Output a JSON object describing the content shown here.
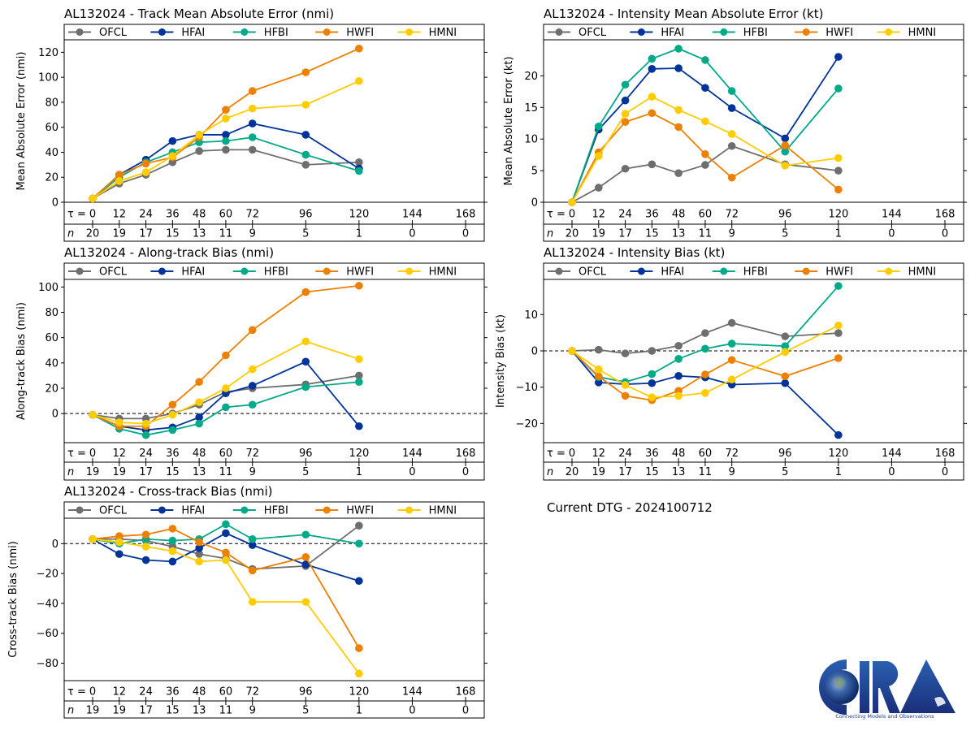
{
  "taus": [
    0,
    12,
    24,
    36,
    48,
    60,
    72,
    96,
    120,
    144,
    168
  ],
  "legend": [
    "OFCL",
    "HFAI",
    "HFBI",
    "HWFI",
    "HMNI"
  ],
  "colors": {
    "OFCL": "#6e6e6e",
    "HFAI": "#003399",
    "HFBI": "#00aa88",
    "HWFI": "#ee8000",
    "HMNI": "#ffcc00"
  },
  "tau_label": "τ =",
  "n_label": "n",
  "dtg_text": "Current DTG - 2024100712",
  "logo": {
    "name": "CIRA",
    "tagline": "Connecting Models and Observations"
  },
  "chart_data": [
    {
      "id": "track-mae",
      "type": "line",
      "title": "AL132024 - Track Mean Absolute Error (nmi)",
      "ylabel": "Mean Absolute Error (nmi)",
      "ylim": [
        0,
        130
      ],
      "yticks": [
        0,
        20,
        40,
        60,
        80,
        100,
        120
      ],
      "zero_line": false,
      "n": [
        20,
        19,
        17,
        15,
        13,
        11,
        9,
        5,
        1,
        0,
        0
      ],
      "x": [
        0,
        12,
        24,
        36,
        48,
        60,
        72,
        96,
        120
      ],
      "series": [
        {
          "name": "OFCL",
          "values": [
            3,
            15,
            22,
            32,
            41,
            42,
            42,
            30,
            32
          ]
        },
        {
          "name": "HFAI",
          "values": [
            3,
            22,
            34,
            49,
            54,
            54,
            63,
            54,
            27
          ]
        },
        {
          "name": "HFBI",
          "values": [
            3,
            20,
            32,
            40,
            48,
            49,
            52,
            38,
            25
          ]
        },
        {
          "name": "HWFI",
          "values": [
            3,
            22,
            31,
            36,
            52,
            74,
            89,
            104,
            123
          ]
        },
        {
          "name": "HMNI",
          "values": [
            3,
            17,
            24,
            37,
            54,
            67,
            75,
            78,
            97
          ]
        }
      ]
    },
    {
      "id": "intensity-mae",
      "type": "line",
      "title": "AL132024 - Intensity Mean Absolute Error (kt)",
      "ylabel": "Mean Absolute Error (kt)",
      "ylim": [
        0,
        25.7
      ],
      "yticks": [
        0,
        5,
        10,
        15,
        20
      ],
      "zero_line": false,
      "n": [
        20,
        19,
        17,
        15,
        13,
        11,
        9,
        5,
        1,
        0,
        0
      ],
      "x": [
        0,
        12,
        24,
        36,
        48,
        60,
        72,
        96,
        120
      ],
      "series": [
        {
          "name": "OFCL",
          "values": [
            0,
            2.3,
            5.3,
            6.0,
            4.6,
            5.9,
            8.9,
            6.0,
            5.0
          ]
        },
        {
          "name": "HFAI",
          "values": [
            0,
            11.5,
            16.1,
            21.1,
            21.2,
            18.1,
            14.9,
            10.1,
            23.0
          ]
        },
        {
          "name": "HFBI",
          "values": [
            0,
            12.0,
            18.6,
            22.7,
            24.3,
            22.5,
            17.6,
            8.0,
            18.0
          ]
        },
        {
          "name": "HWFI",
          "values": [
            0,
            7.9,
            12.7,
            14.1,
            11.9,
            7.6,
            3.9,
            9.0,
            2.0
          ]
        },
        {
          "name": "HMNI",
          "values": [
            0,
            7.3,
            14.0,
            16.7,
            14.6,
            12.8,
            10.8,
            5.8,
            7.0
          ]
        }
      ]
    },
    {
      "id": "along-track-bias",
      "type": "line",
      "title": "AL132024 - Along-track Bias (nmi)",
      "ylabel": "Along-track Bias (nmi)",
      "ylim": [
        -23,
        106
      ],
      "yticks": [
        0,
        20,
        40,
        60,
        80,
        100
      ],
      "zero_line": true,
      "n": [
        19,
        19,
        17,
        15,
        13,
        11,
        9,
        5,
        1,
        0,
        0
      ],
      "x": [
        0,
        12,
        24,
        36,
        48,
        60,
        72,
        96,
        120
      ],
      "series": [
        {
          "name": "OFCL",
          "values": [
            -1,
            -4,
            -4,
            0,
            7,
            17,
            20,
            23,
            30
          ]
        },
        {
          "name": "HFAI",
          "values": [
            -1,
            -10,
            -13,
            -11,
            -3,
            16,
            22,
            41,
            -10
          ]
        },
        {
          "name": "HFBI",
          "values": [
            -1,
            -12,
            -17,
            -13,
            -8,
            5,
            7,
            21,
            25
          ]
        },
        {
          "name": "HWFI",
          "values": [
            -1,
            -10,
            -10,
            7,
            25,
            46,
            66,
            96,
            101
          ]
        },
        {
          "name": "HMNI",
          "values": [
            -1,
            -7,
            -8,
            -1,
            9,
            20,
            35,
            57,
            43
          ]
        }
      ]
    },
    {
      "id": "intensity-bias",
      "type": "line",
      "title": "AL132024 - Intensity Bias (kt)",
      "ylabel": "Intensity Bias (kt)",
      "ylim": [
        -25.3,
        19.7
      ],
      "yticks": [
        -20,
        -10,
        0,
        10
      ],
      "zero_line": true,
      "n": [
        20,
        19,
        17,
        15,
        13,
        11,
        9,
        5,
        1,
        0,
        0
      ],
      "x": [
        0,
        12,
        24,
        36,
        48,
        60,
        72,
        96,
        120
      ],
      "series": [
        {
          "name": "OFCL",
          "values": [
            0,
            0.3,
            -0.7,
            0,
            1.4,
            4.9,
            7.7,
            4.0,
            4.9
          ]
        },
        {
          "name": "HFAI",
          "values": [
            0,
            -8.7,
            -9.2,
            -8.9,
            -6.9,
            -7.3,
            -9.3,
            -8.9,
            -23.2
          ]
        },
        {
          "name": "HFBI",
          "values": [
            0,
            -7.2,
            -8.6,
            -6.4,
            -2.2,
            0.6,
            2.0,
            1.3,
            17.9
          ]
        },
        {
          "name": "HWFI",
          "values": [
            0,
            -7.0,
            -12.4,
            -13.6,
            -11.0,
            -6.5,
            -2.5,
            -7.0,
            -2.0
          ]
        },
        {
          "name": "HMNI",
          "values": [
            0,
            -5.1,
            -9.4,
            -12.8,
            -12.4,
            -11.6,
            -7.9,
            -0.3,
            7.0
          ]
        }
      ]
    },
    {
      "id": "cross-track-bias",
      "type": "line",
      "title": "AL132024 - Cross-track Bias (nmi)",
      "ylabel": "Cross-track Bias (nmi)",
      "ylim": [
        -91.7,
        17
      ],
      "yticks": [
        -80,
        -60,
        -40,
        -20,
        0
      ],
      "zero_line": true,
      "n": [
        19,
        19,
        17,
        15,
        13,
        11,
        9,
        5,
        1,
        0,
        0
      ],
      "x": [
        0,
        12,
        24,
        36,
        48,
        60,
        72,
        96,
        120
      ],
      "series": [
        {
          "name": "OFCL",
          "values": [
            3,
            3,
            2,
            -2,
            -7,
            -10,
            -17,
            -15,
            12
          ]
        },
        {
          "name": "HFAI",
          "values": [
            3,
            -7,
            -11,
            -12,
            -3,
            7,
            -1,
            -14,
            -25
          ]
        },
        {
          "name": "HFBI",
          "values": [
            3,
            0,
            3,
            2,
            3,
            13,
            3,
            6,
            0
          ]
        },
        {
          "name": "HWFI",
          "values": [
            3,
            5,
            6,
            10,
            1,
            -6,
            -18,
            -9,
            -70
          ]
        },
        {
          "name": "HMNI",
          "values": [
            3,
            1,
            -2,
            -5,
            -12,
            -11,
            -39,
            -39,
            -87
          ]
        }
      ]
    }
  ]
}
